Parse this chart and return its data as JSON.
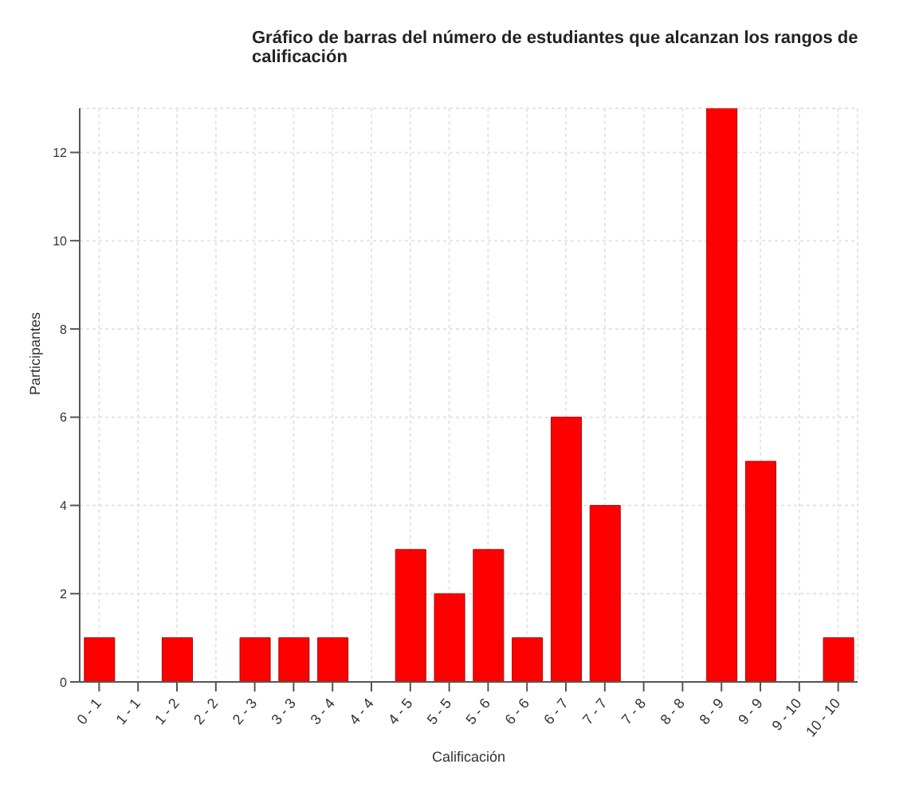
{
  "chart_data": {
    "type": "bar",
    "title": "Gráfico de barras del número de estudiantes que alcanzan los rangos de calificación",
    "xlabel": "Calificación",
    "ylabel": "Participantes",
    "categories": [
      "0 - 1",
      "1 - 1",
      "1 - 2",
      "2 - 2",
      "2 - 3",
      "3 - 3",
      "3 - 4",
      "4 - 4",
      "4 - 5",
      "5 - 5",
      "5 - 6",
      "6 - 6",
      "6 - 7",
      "7 - 7",
      "7 - 8",
      "8 - 8",
      "8 - 9",
      "9 - 9",
      "9 - 10",
      "10 - 10"
    ],
    "values": [
      1,
      0,
      1,
      0,
      1,
      1,
      1,
      0,
      3,
      2,
      3,
      1,
      6,
      4,
      0,
      0,
      13,
      5,
      0,
      1
    ],
    "color": "#ff0000",
    "ylim": [
      0,
      13
    ],
    "yticks": [
      0,
      2,
      4,
      6,
      8,
      10,
      12
    ],
    "grid": true
  }
}
